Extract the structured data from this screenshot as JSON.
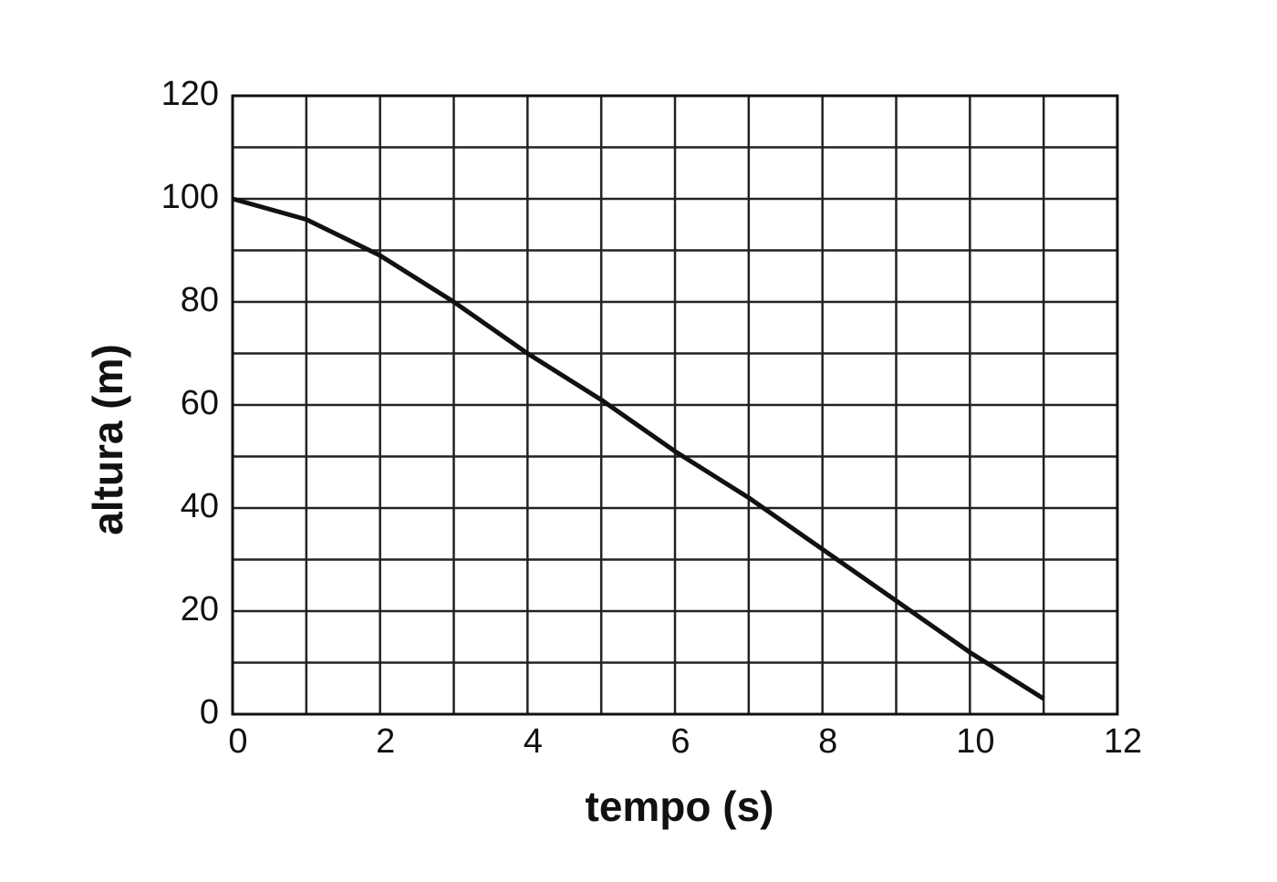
{
  "chart_data": {
    "type": "line",
    "x_label": "tempo (s)",
    "y_label": "altura (m)",
    "x": [
      0,
      1,
      2,
      3,
      4,
      5,
      6,
      7,
      8,
      9,
      10,
      11
    ],
    "series": [
      {
        "color": "#111111",
        "values": [
          100,
          96,
          89,
          80,
          70,
          61,
          51,
          42,
          32,
          22,
          12,
          3
        ]
      }
    ],
    "xlim": [
      0,
      12
    ],
    "xticks": [
      0,
      2,
      4,
      6,
      8,
      10,
      12
    ],
    "ylim": [
      0,
      120
    ],
    "yticks": [
      0,
      20,
      40,
      60,
      80,
      100,
      120
    ],
    "grid": true
  }
}
